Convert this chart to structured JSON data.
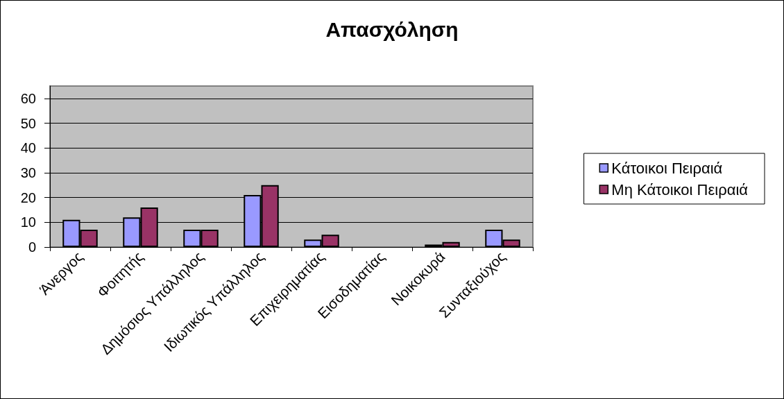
{
  "chart_data": {
    "type": "bar",
    "title": "Απασχόληση",
    "categories": [
      "Άνεργος",
      "Φοιτητής",
      "Δημόσιος Υπάλληλος",
      "Ιδιωτικός Υπάλληλος",
      "Επιχειρηματίας",
      "Εισοδηματίας",
      "Νοικοκυρά",
      "Συνταξιούχος"
    ],
    "series": [
      {
        "name": "Κάτοικοι Πειραιά",
        "color": "#9999ff",
        "values": [
          11,
          12,
          7,
          21,
          3,
          null,
          1,
          7
        ]
      },
      {
        "name": "Μη Κάτοικοι Πειραιά",
        "color": "#993366",
        "values": [
          7,
          16,
          7,
          25,
          5,
          null,
          2,
          3
        ]
      }
    ],
    "ylim": [
      0,
      65
    ],
    "yticks": [
      0,
      10,
      20,
      30,
      40,
      50,
      60
    ],
    "grid": "y",
    "legend": "right"
  }
}
